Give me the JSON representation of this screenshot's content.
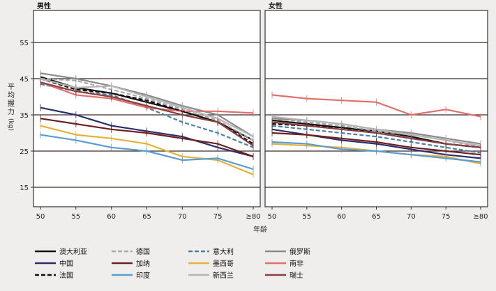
{
  "chart_data": [
    {
      "type": "line",
      "title": "男性",
      "xlabel": "年龄",
      "ylabel": "平均握力 (kg)",
      "categories": [
        "50",
        "55",
        "60",
        "65",
        "70",
        "75",
        "≥80"
      ],
      "yticks": [
        15,
        25,
        35,
        45,
        55
      ],
      "ylim": [
        10,
        60
      ],
      "grid": "horizontal",
      "series": [
        {
          "name": "澳大利亚",
          "color": "#111111",
          "dash": "solid",
          "values": [
            45.5,
            42.5,
            41,
            38.5,
            36,
            33,
            28
          ]
        },
        {
          "name": "德国",
          "color": "#aaaaaa",
          "dash": "dashed",
          "values": [
            45,
            44.5,
            42,
            39.5,
            36.5,
            33.5,
            28
          ]
        },
        {
          "name": "意大利",
          "color": "#4c80a8",
          "dash": "dashed",
          "values": [
            43.5,
            41.5,
            40.5,
            37,
            33,
            30,
            26
          ]
        },
        {
          "name": "俄罗斯",
          "color": "#8a8a8a",
          "dash": "solid",
          "values": [
            46.5,
            45,
            43,
            40.5,
            37.5,
            35,
            29
          ]
        },
        {
          "name": "中国",
          "color": "#2c2d6a",
          "dash": "solid",
          "values": [
            37,
            35,
            32,
            30.5,
            29,
            26,
            23.5
          ]
        },
        {
          "name": "加纳",
          "color": "#6e2020",
          "dash": "solid",
          "values": [
            34,
            32.5,
            31,
            30,
            28.5,
            27,
            23.5
          ]
        },
        {
          "name": "墨西哥",
          "color": "#e3b23a",
          "dash": "solid",
          "values": [
            32,
            29.5,
            28.5,
            27,
            23.5,
            22.5,
            18.5
          ]
        },
        {
          "name": "南非",
          "color": "#e46f6a",
          "dash": "solid",
          "values": [
            44,
            40.5,
            39.5,
            37,
            36,
            36,
            35.5
          ]
        },
        {
          "name": "法国",
          "color": "#111111",
          "dash": "dashed",
          "values": [
            45,
            42,
            41,
            39,
            36,
            33,
            27
          ]
        },
        {
          "name": "印度",
          "color": "#5a9ccf",
          "dash": "solid",
          "values": [
            29.5,
            28,
            26,
            25,
            22.5,
            23,
            20
          ]
        },
        {
          "name": "新西兰",
          "color": "#b5b5b5",
          "dash": "solid",
          "values": [
            45,
            42.5,
            43,
            40,
            37,
            34,
            29
          ]
        },
        {
          "name": "瑞士",
          "color": "#8a3f3f",
          "dash": "solid",
          "values": [
            44,
            41.5,
            40,
            37.5,
            35,
            33,
            26.5
          ]
        }
      ]
    },
    {
      "type": "line",
      "title": "女性",
      "xlabel": "",
      "ylabel": "",
      "categories": [
        "50",
        "55",
        "60",
        "65",
        "70",
        "75",
        "≥80"
      ],
      "yticks": [
        15,
        25,
        35,
        45,
        55
      ],
      "ylim": [
        10,
        60
      ],
      "grid": "horizontal",
      "series": [
        {
          "name": "澳大利亚",
          "color": "#111111",
          "dash": "solid",
          "values": [
            33.5,
            32.5,
            31.5,
            30.5,
            29,
            27,
            26
          ]
        },
        {
          "name": "德国",
          "color": "#aaaaaa",
          "dash": "dashed",
          "values": [
            34,
            33,
            32,
            30.5,
            29.5,
            28,
            26
          ]
        },
        {
          "name": "意大利",
          "color": "#4c80a8",
          "dash": "dashed",
          "values": [
            32,
            31,
            30,
            29,
            27.5,
            26,
            24.5
          ]
        },
        {
          "name": "俄罗斯",
          "color": "#8a8a8a",
          "dash": "solid",
          "values": [
            34,
            33.5,
            32.5,
            31,
            30,
            28.5,
            27
          ]
        },
        {
          "name": "中国",
          "color": "#2c2d6a",
          "dash": "solid",
          "values": [
            31,
            29.5,
            28,
            27,
            25.5,
            24,
            23
          ]
        },
        {
          "name": "加纳",
          "color": "#6e2020",
          "dash": "solid",
          "values": [
            30,
            29.5,
            28.5,
            27.5,
            26,
            25,
            24
          ]
        },
        {
          "name": "墨西哥",
          "color": "#e3b23a",
          "dash": "solid",
          "values": [
            27,
            26.5,
            26,
            25,
            24,
            23.5,
            21.5
          ]
        },
        {
          "name": "南非",
          "color": "#e46f6a",
          "dash": "solid",
          "values": [
            40.5,
            39.5,
            39,
            38.5,
            35,
            36.5,
            34.5
          ]
        },
        {
          "name": "法国",
          "color": "#111111",
          "dash": "dashed",
          "values": [
            32.5,
            32,
            31.5,
            30,
            28.5,
            27,
            26
          ]
        },
        {
          "name": "印度",
          "color": "#5a9ccf",
          "dash": "solid",
          "values": [
            27.5,
            27,
            25.5,
            25,
            24,
            23,
            22
          ]
        },
        {
          "name": "新西兰",
          "color": "#b5b5b5",
          "dash": "solid",
          "values": [
            34.5,
            33.5,
            32.5,
            31,
            29.5,
            28,
            26.5
          ]
        },
        {
          "name": "瑞士",
          "color": "#8a3f3f",
          "dash": "solid",
          "values": [
            33,
            32,
            31,
            30,
            28.5,
            27,
            26
          ]
        }
      ]
    }
  ],
  "legend": {
    "placement": "bottom",
    "items": [
      "澳大利亚",
      "德国",
      "意大利",
      "俄罗斯",
      "中国",
      "加纳",
      "墨西哥",
      "南非",
      "法国",
      "印度",
      "新西兰",
      "瑞士"
    ]
  }
}
